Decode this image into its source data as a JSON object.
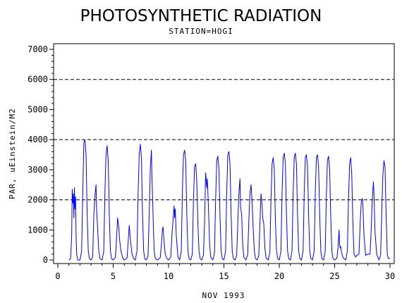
{
  "chart_data": {
    "type": "line",
    "title": "PHOTOSYNTHETIC RADIATION",
    "subtitle": "STATION=HOGI",
    "xlabel": "NOV 1993",
    "ylabel": "PAR, uEinstein/M2",
    "xlim": [
      0,
      30
    ],
    "ylim": [
      0,
      7000
    ],
    "x_ticks": [
      0,
      5,
      10,
      15,
      20,
      25,
      30
    ],
    "y_ticks": [
      0,
      1000,
      2000,
      3000,
      4000,
      5000,
      6000,
      7000
    ],
    "reference_lines": [
      2000,
      4000,
      6000
    ],
    "line_color": "#0000ff",
    "grid": false,
    "series": [
      {
        "x": [
          1.0,
          1.15,
          1.25,
          1.3,
          1.35,
          1.4,
          1.45,
          1.5,
          1.55,
          1.6,
          1.65,
          1.7,
          1.8,
          2.0,
          2.15,
          2.25,
          2.35,
          2.45,
          2.55,
          2.65,
          2.75,
          2.85,
          3.0,
          3.0,
          3.15,
          3.25,
          3.35,
          3.45,
          3.5,
          3.6,
          3.7,
          3.8,
          4.0,
          4.0,
          4.15,
          4.25,
          4.35,
          4.45,
          4.55,
          4.65,
          4.75,
          4.85,
          5.0,
          5.0,
          5.2,
          5.3,
          5.4,
          5.5,
          5.6,
          5.7,
          5.85,
          6.0,
          6.0,
          6.25,
          6.35,
          6.45,
          6.55,
          6.7,
          6.85,
          7.0,
          7.0,
          7.15,
          7.25,
          7.35,
          7.45,
          7.55,
          7.65,
          7.75,
          7.85,
          8.0,
          8.0,
          8.15,
          8.25,
          8.35,
          8.45,
          8.5,
          8.6,
          8.7,
          8.8,
          9.0,
          9.0,
          9.25,
          9.35,
          9.45,
          9.5,
          9.6,
          9.7,
          9.85,
          10.0,
          10.0,
          10.2,
          10.3,
          10.4,
          10.5,
          10.55,
          10.6,
          10.7,
          10.85,
          11.0,
          11.0,
          11.15,
          11.25,
          11.35,
          11.45,
          11.55,
          11.65,
          11.75,
          11.85,
          12.0,
          12.0,
          12.15,
          12.25,
          12.35,
          12.45,
          12.55,
          12.65,
          12.75,
          12.85,
          13.0,
          13.0,
          13.15,
          13.25,
          13.35,
          13.45,
          13.5,
          13.6,
          13.7,
          13.8,
          14.0,
          14.0,
          14.15,
          14.25,
          14.35,
          14.45,
          14.55,
          14.65,
          14.75,
          14.85,
          15.0,
          15.0,
          15.15,
          15.25,
          15.35,
          15.45,
          15.55,
          15.65,
          15.75,
          15.85,
          16.0,
          16.0,
          16.15,
          16.25,
          16.35,
          16.45,
          16.5,
          16.6,
          16.7,
          16.8,
          17.0,
          17.0,
          17.15,
          17.25,
          17.35,
          17.45,
          17.55,
          17.65,
          17.75,
          17.85,
          18.0,
          18.0,
          18.15,
          18.25,
          18.35,
          18.45,
          18.5,
          18.6,
          18.7,
          18.8,
          19.0,
          19.0,
          19.15,
          19.25,
          19.35,
          19.45,
          19.55,
          19.65,
          19.75,
          19.85,
          20.0,
          20.0,
          20.15,
          20.25,
          20.35,
          20.45,
          20.55,
          20.65,
          20.75,
          20.85,
          21.0,
          21.0,
          21.15,
          21.25,
          21.35,
          21.45,
          21.55,
          21.65,
          21.75,
          21.85,
          22.0,
          22.0,
          22.15,
          22.25,
          22.35,
          22.45,
          22.55,
          22.65,
          22.75,
          22.85,
          23.0,
          23.0,
          23.15,
          23.25,
          23.35,
          23.45,
          23.55,
          23.65,
          23.75,
          23.85,
          24.0,
          24.0,
          24.15,
          24.25,
          24.35,
          24.45,
          24.55,
          24.65,
          24.75,
          24.85,
          25.0,
          25.0,
          25.2,
          25.3,
          25.4,
          25.45,
          25.5,
          25.55,
          25.6,
          25.75,
          26.0,
          26.0,
          26.15,
          26.25,
          26.35,
          26.45,
          26.55,
          26.65,
          26.75,
          26.9,
          27.0,
          27.0,
          27.2,
          27.3,
          27.4,
          27.5,
          27.55,
          27.65,
          27.8,
          28.0,
          28.2,
          28.3,
          28.4,
          28.5,
          28.55,
          28.65,
          28.8,
          29.0,
          29.0,
          29.15,
          29.25,
          29.35,
          29.45,
          29.55,
          29.65,
          29.75,
          29.85,
          30.0
        ],
        "y": [
          0,
          50,
          800,
          2350,
          1900,
          2200,
          1400,
          2400,
          1700,
          2100,
          800,
          200,
          0,
          0,
          300,
          2200,
          3900,
          4000,
          3500,
          1500,
          300,
          50,
          0,
          0,
          100,
          1500,
          2100,
          2500,
          1700,
          1000,
          300,
          50,
          0,
          0,
          300,
          2200,
          3500,
          3800,
          3300,
          1500,
          300,
          50,
          0,
          0,
          80,
          700,
          1400,
          1100,
          600,
          300,
          80,
          0,
          0,
          60,
          600,
          1150,
          700,
          200,
          50,
          0,
          0,
          300,
          2200,
          3500,
          3850,
          3400,
          1500,
          300,
          50,
          0,
          0,
          150,
          1500,
          3000,
          3650,
          2800,
          1500,
          300,
          50,
          0,
          0,
          80,
          500,
          1000,
          1100,
          600,
          200,
          50,
          0,
          0,
          100,
          800,
          1300,
          1800,
          1400,
          1700,
          800,
          100,
          0,
          0,
          300,
          2300,
          3500,
          3650,
          3300,
          1500,
          300,
          50,
          0,
          0,
          200,
          2000,
          3100,
          3200,
          2600,
          1200,
          300,
          50,
          0,
          0,
          150,
          1200,
          2900,
          2400,
          2700,
          1800,
          600,
          100,
          0,
          0,
          250,
          2000,
          3300,
          3450,
          3000,
          1400,
          300,
          50,
          0,
          0,
          300,
          2200,
          3500,
          3600,
          3200,
          1500,
          300,
          50,
          0,
          0,
          150,
          1200,
          2200,
          2700,
          1800,
          1500,
          500,
          100,
          0,
          0,
          200,
          1300,
          2200,
          2500,
          1900,
          1000,
          300,
          50,
          0,
          0,
          150,
          1200,
          2200,
          1800,
          1400,
          1200,
          400,
          80,
          0,
          0,
          250,
          2000,
          3200,
          3400,
          3000,
          1300,
          300,
          50,
          0,
          0,
          300,
          2200,
          3400,
          3550,
          3200,
          1500,
          300,
          50,
          0,
          0,
          300,
          2200,
          3400,
          3550,
          3200,
          1500,
          300,
          50,
          0,
          0,
          300,
          2200,
          3400,
          3500,
          3100,
          1500,
          300,
          50,
          0,
          0,
          300,
          2200,
          3400,
          3500,
          3100,
          1500,
          300,
          50,
          0,
          0,
          300,
          2100,
          3300,
          3450,
          3000,
          1400,
          300,
          50,
          0,
          0,
          60,
          400,
          1000,
          500,
          400,
          450,
          300,
          80,
          0,
          0,
          300,
          2000,
          3200,
          3400,
          2800,
          1200,
          200,
          100,
          150,
          150,
          200,
          1200,
          1900,
          2050,
          1800,
          800,
          150,
          200,
          200,
          1000,
          2000,
          2600,
          2200,
          900,
          200,
          0,
          0,
          150,
          1500,
          2800,
          3300,
          3100,
          1500,
          200,
          50,
          50
        ]
      }
    ]
  }
}
